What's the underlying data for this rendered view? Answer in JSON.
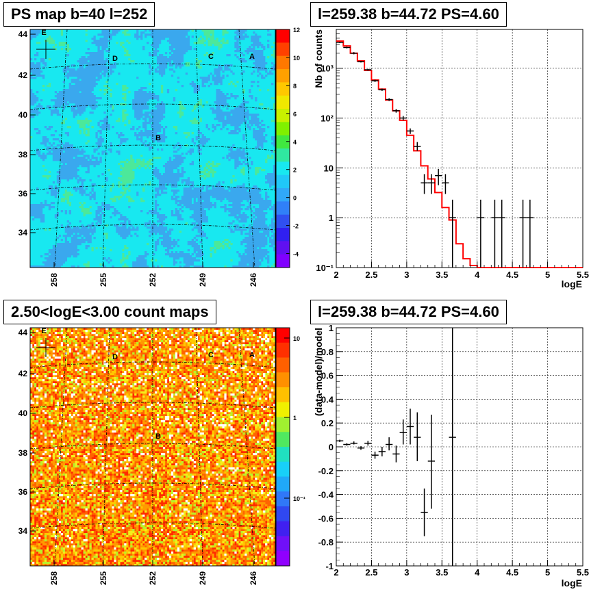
{
  "panels": {
    "top_left_title": "PS map b=40 l=252",
    "top_right_title": "l=259.38 b=44.72 PS=4.60",
    "bottom_left_title": "2.50<logE<3.00 count maps",
    "bottom_right_title": "l=259.38 b=44.72 PS=4.60"
  },
  "chart_data": [
    {
      "type": "heatmap",
      "title": "PS map b=40 l=252",
      "x_ticks": [
        "258",
        "255",
        "252",
        "249",
        "246"
      ],
      "y_ticks": [
        "34",
        "36",
        "38",
        "40",
        "42",
        "44"
      ],
      "colorbar_ticks": [
        "12",
        "10",
        "8",
        "6",
        "4",
        "2",
        "0",
        "-2",
        "-4"
      ],
      "zlim": [
        -5,
        12
      ],
      "sources": [
        {
          "label": "A"
        },
        {
          "label": "B"
        },
        {
          "label": "C"
        },
        {
          "label": "D"
        },
        {
          "label": "E"
        }
      ],
      "colors": {
        "background": "#18e8f0",
        "patch": "#3aa8ee",
        "hot": "#4ce89a"
      }
    },
    {
      "type": "line",
      "title": "l=259.38 b=44.72 PS=4.60",
      "xlabel": "logE",
      "ylabel": "Nb of counts",
      "xlim": [
        2,
        5.5
      ],
      "ylim": [
        0.1,
        6000
      ],
      "log_y": true,
      "x_ticks": [
        "2",
        "2.5",
        "3",
        "3.5",
        "4",
        "4.5",
        "5",
        "5.5"
      ],
      "y_ticks": [
        "10⁻¹",
        "1",
        "10",
        "10²",
        "10³"
      ],
      "model": {
        "color": "#ff0000",
        "edges": [
          2.0,
          2.1,
          2.2,
          2.3,
          2.4,
          2.5,
          2.6,
          2.7,
          2.8,
          2.9,
          3.0,
          3.1,
          3.2,
          3.3,
          3.4,
          3.5,
          3.6,
          3.7,
          3.8,
          3.9,
          4.0,
          5.5
        ],
        "values": [
          3500,
          2800,
          2000,
          1400,
          900,
          580,
          380,
          230,
          140,
          90,
          45,
          22,
          11,
          6,
          3.2,
          1.6,
          0.9,
          0.3,
          0.15,
          0.11,
          0.1
        ]
      },
      "data": [
        {
          "x": 2.05,
          "y": 3300,
          "dx": 0.05,
          "lo": 3200,
          "hi": 3400
        },
        {
          "x": 2.15,
          "y": 2600,
          "dx": 0.05,
          "lo": 2500,
          "hi": 2700
        },
        {
          "x": 2.25,
          "y": 2000,
          "dx": 0.05,
          "lo": 1900,
          "hi": 2100
        },
        {
          "x": 2.35,
          "y": 1350,
          "dx": 0.05,
          "lo": 1300,
          "hi": 1400
        },
        {
          "x": 2.45,
          "y": 930,
          "dx": 0.05,
          "lo": 890,
          "hi": 970
        },
        {
          "x": 2.55,
          "y": 560,
          "dx": 0.05,
          "lo": 530,
          "hi": 590
        },
        {
          "x": 2.65,
          "y": 370,
          "dx": 0.05,
          "lo": 350,
          "hi": 390
        },
        {
          "x": 2.75,
          "y": 235,
          "dx": 0.05,
          "lo": 220,
          "hi": 250
        },
        {
          "x": 2.85,
          "y": 140,
          "dx": 0.05,
          "lo": 128,
          "hi": 152
        },
        {
          "x": 2.95,
          "y": 100,
          "dx": 0.05,
          "lo": 90,
          "hi": 110
        },
        {
          "x": 3.05,
          "y": 55,
          "dx": 0.05,
          "lo": 48,
          "hi": 62
        },
        {
          "x": 3.15,
          "y": 27,
          "dx": 0.05,
          "lo": 22,
          "hi": 33
        },
        {
          "x": 3.25,
          "y": 5,
          "dx": 0.05,
          "lo": 3,
          "hi": 7.5
        },
        {
          "x": 3.35,
          "y": 5,
          "dx": 0.05,
          "lo": 3,
          "hi": 7.5
        },
        {
          "x": 3.45,
          "y": 7,
          "dx": 0.05,
          "lo": 4.5,
          "hi": 9.5
        },
        {
          "x": 3.55,
          "y": 5,
          "dx": 0.05,
          "lo": 3,
          "hi": 7.5
        },
        {
          "x": 3.65,
          "y": 1,
          "dx": 0.05,
          "lo": 0.1,
          "hi": 2.3
        },
        {
          "x": 4.05,
          "y": 1,
          "dx": 0.05,
          "lo": 0.1,
          "hi": 2.3
        },
        {
          "x": 4.25,
          "y": 1,
          "dx": 0.05,
          "lo": 0.1,
          "hi": 2.3
        },
        {
          "x": 4.35,
          "y": 1,
          "dx": 0.05,
          "lo": 0.1,
          "hi": 2.3
        },
        {
          "x": 4.65,
          "y": 1,
          "dx": 0.05,
          "lo": 0.1,
          "hi": 2.3
        },
        {
          "x": 4.75,
          "y": 1,
          "dx": 0.05,
          "lo": 0.1,
          "hi": 2.3
        }
      ],
      "grid": true
    },
    {
      "type": "heatmap",
      "title": "2.50<logE<3.00 count maps",
      "x_ticks": [
        "258",
        "255",
        "252",
        "249",
        "246"
      ],
      "y_ticks": [
        "34",
        "36",
        "38",
        "40",
        "42",
        "44"
      ],
      "colorbar_ticks": [
        "10",
        "1",
        "10⁻¹"
      ],
      "log_z": true,
      "sources": [
        {
          "label": "A"
        },
        {
          "label": "B"
        },
        {
          "label": "C"
        },
        {
          "label": "D"
        },
        {
          "label": "E"
        }
      ]
    },
    {
      "type": "scatter",
      "title": "l=259.38 b=44.72 PS=4.60",
      "xlabel": "logE",
      "ylabel": "(data-model)/model",
      "xlim": [
        2,
        5.5
      ],
      "ylim": [
        -1,
        1
      ],
      "x_ticks": [
        "2",
        "2.5",
        "3",
        "3.5",
        "4",
        "4.5",
        "5",
        "5.5"
      ],
      "y_ticks": [
        "1",
        "0.8",
        "0.6",
        "0.4",
        "0.2",
        "0",
        "-0.2",
        "-0.4",
        "-0.6",
        "-0.8",
        "-1"
      ],
      "data": [
        {
          "x": 2.05,
          "y": 0.05,
          "dx": 0.05,
          "lo": 0.04,
          "hi": 0.06
        },
        {
          "x": 2.15,
          "y": 0.02,
          "dx": 0.05,
          "lo": 0.01,
          "hi": 0.03
        },
        {
          "x": 2.25,
          "y": 0.03,
          "dx": 0.05,
          "lo": 0.02,
          "hi": 0.045
        },
        {
          "x": 2.35,
          "y": -0.01,
          "dx": 0.05,
          "lo": -0.025,
          "hi": 0.005
        },
        {
          "x": 2.45,
          "y": 0.03,
          "dx": 0.05,
          "lo": 0.01,
          "hi": 0.05
        },
        {
          "x": 2.55,
          "y": -0.07,
          "dx": 0.05,
          "lo": -0.1,
          "hi": -0.04
        },
        {
          "x": 2.65,
          "y": -0.04,
          "dx": 0.05,
          "lo": -0.08,
          "hi": 0.0
        },
        {
          "x": 2.75,
          "y": 0.02,
          "dx": 0.05,
          "lo": -0.03,
          "hi": 0.08
        },
        {
          "x": 2.85,
          "y": -0.06,
          "dx": 0.05,
          "lo": -0.13,
          "hi": 0.01
        },
        {
          "x": 2.95,
          "y": 0.12,
          "dx": 0.05,
          "lo": 0.02,
          "hi": 0.23
        },
        {
          "x": 3.05,
          "y": 0.17,
          "dx": 0.05,
          "lo": 0.02,
          "hi": 0.32
        },
        {
          "x": 3.15,
          "y": 0.08,
          "dx": 0.05,
          "lo": -0.12,
          "hi": 0.29
        },
        {
          "x": 3.25,
          "y": -0.55,
          "dx": 0.05,
          "lo": -0.75,
          "hi": -0.35
        },
        {
          "x": 3.35,
          "y": -0.12,
          "dx": 0.05,
          "lo": -0.52,
          "hi": 0.27
        },
        {
          "x": 3.65,
          "y": 0.08,
          "dx": 0.05,
          "lo": -1.0,
          "hi": 1.0
        }
      ],
      "grid": true
    }
  ]
}
